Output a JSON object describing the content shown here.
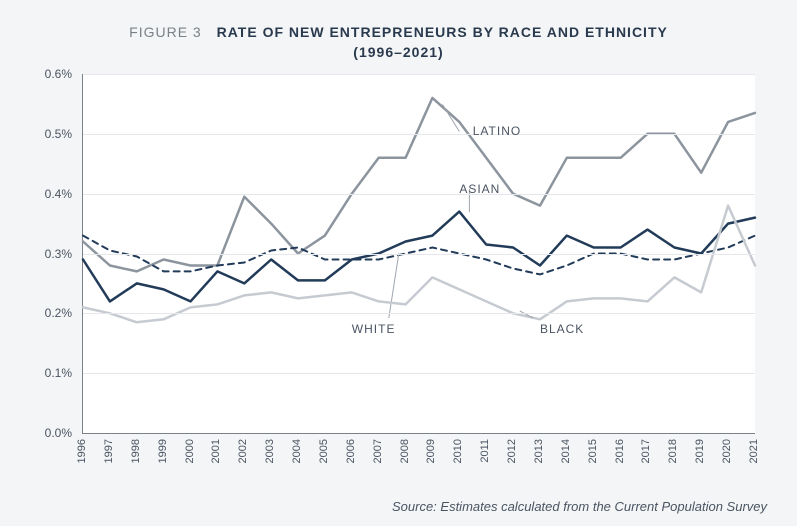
{
  "figure_label": "FIGURE 3",
  "title": "RATE OF NEW ENTREPRENEURS BY RACE AND ETHNICITY",
  "subtitle_years": "(1996–2021)",
  "source": "Source: Estimates calculated from the Current Population Survey",
  "chart": {
    "type": "line",
    "background_color": "#ffffff",
    "panel_color": "#f4f5f6",
    "grid_color": "#e5e7ea",
    "axis_color": "#7a8188",
    "text_color": "#4a5462",
    "title_color": "#2a3a4e",
    "tick_fontsize": 12,
    "label_fontsize": 12,
    "title_fontsize": 14,
    "ylim": [
      0.0,
      0.006
    ],
    "ytick_step": 0.001,
    "y_format_percent": true,
    "x_categories": [
      "1996",
      "1997",
      "1998",
      "1999",
      "2000",
      "2001",
      "2002",
      "2003",
      "2004",
      "2005",
      "2006",
      "2007",
      "2008",
      "2009",
      "2010",
      "2011",
      "2012",
      "2013",
      "2014",
      "2015",
      "2016",
      "2017",
      "2018",
      "2019",
      "2020",
      "2021"
    ],
    "series": [
      {
        "name": "LATINO",
        "color": "#8c949e",
        "dash": "solid",
        "width": 2.5,
        "label_xy": [
          0.58,
          0.14
        ],
        "callout_from": [
          0.56,
          0.16
        ],
        "callout_to": [
          0.535,
          0.085
        ],
        "values": [
          0.0032,
          0.0028,
          0.0027,
          0.0029,
          0.0028,
          0.0028,
          0.00395,
          0.0035,
          0.003,
          0.0033,
          0.004,
          0.0046,
          0.0046,
          0.0056,
          0.0052,
          0.0046,
          0.004,
          0.0038,
          0.0046,
          0.0046,
          0.0046,
          0.005,
          0.005,
          0.00435,
          0.0052,
          0.00535
        ]
      },
      {
        "name": "ASIAN",
        "color": "#223b59",
        "dash": "solid",
        "width": 2.5,
        "label_xy": [
          0.56,
          0.3
        ],
        "callout_from": [
          0.575,
          0.32
        ],
        "callout_to": [
          0.575,
          0.385
        ],
        "values": [
          0.0029,
          0.0022,
          0.0025,
          0.0024,
          0.0022,
          0.0027,
          0.0025,
          0.0029,
          0.00255,
          0.00255,
          0.0029,
          0.003,
          0.0032,
          0.0033,
          0.0037,
          0.00315,
          0.0031,
          0.0028,
          0.0033,
          0.0031,
          0.0031,
          0.0034,
          0.0031,
          0.003,
          0.0035,
          0.0036
        ]
      },
      {
        "name": "WHITE",
        "color": "#223b59",
        "dash": "dashed",
        "width": 2,
        "label_xy": [
          0.4,
          0.69
        ],
        "callout_from": [
          0.455,
          0.68
        ],
        "callout_to": [
          0.47,
          0.5
        ],
        "values": [
          0.0033,
          0.00305,
          0.00295,
          0.0027,
          0.0027,
          0.0028,
          0.00285,
          0.00305,
          0.0031,
          0.0029,
          0.0029,
          0.0029,
          0.003,
          0.0031,
          0.003,
          0.0029,
          0.00275,
          0.00265,
          0.0028,
          0.003,
          0.003,
          0.0029,
          0.0029,
          0.003,
          0.0031,
          0.0033
        ]
      },
      {
        "name": "BLACK",
        "color": "#c6cbd1",
        "dash": "solid",
        "width": 2.5,
        "label_xy": [
          0.68,
          0.69
        ],
        "callout_from": [
          0.67,
          0.68
        ],
        "callout_to": [
          0.65,
          0.66
        ],
        "values": [
          0.0021,
          0.002,
          0.00185,
          0.0019,
          0.0021,
          0.00215,
          0.0023,
          0.00235,
          0.00225,
          0.0023,
          0.00235,
          0.0022,
          0.00215,
          0.0026,
          0.0024,
          0.0022,
          0.002,
          0.0019,
          0.0022,
          0.00225,
          0.00225,
          0.0022,
          0.0026,
          0.00235,
          0.0038,
          0.0028
        ]
      }
    ]
  }
}
